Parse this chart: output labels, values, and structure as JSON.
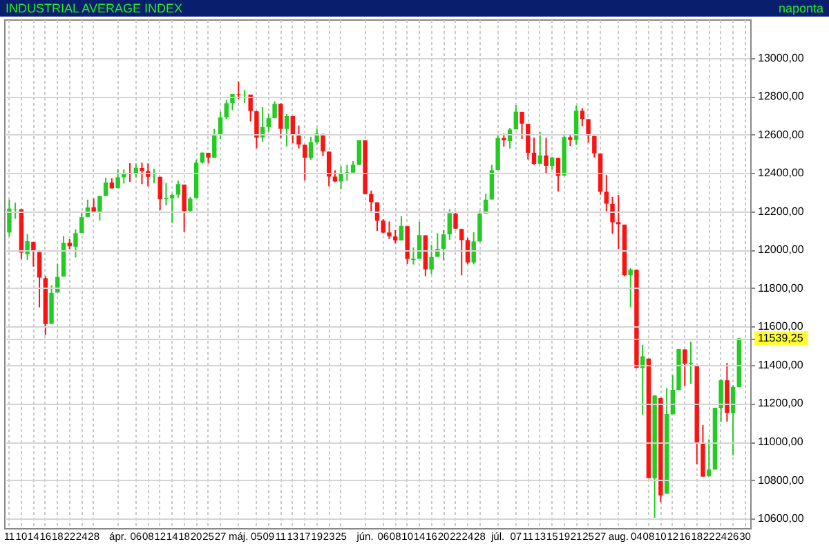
{
  "chart_data": {
    "type": "candlestick",
    "title": "INDUSTRIAL AVERAGE INDEX",
    "subtitle": "naponta",
    "categories": [
      "11",
      null,
      "10",
      null,
      "14",
      null,
      "16",
      null,
      "18",
      null,
      "22",
      null,
      "24",
      null,
      "28",
      null,
      null,
      null,
      "ápr.",
      null,
      null,
      "06",
      null,
      "08",
      null,
      "12",
      null,
      "14",
      null,
      "18",
      null,
      "20",
      null,
      "25",
      null,
      "27",
      null,
      null,
      "máj.",
      null,
      null,
      "05",
      null,
      "09",
      null,
      "11",
      null,
      "13",
      null,
      "17",
      null,
      "19",
      null,
      "23",
      null,
      "25",
      null,
      null,
      null,
      "jún.",
      null,
      null,
      "06",
      null,
      "08",
      null,
      "10",
      null,
      "14",
      null,
      "16",
      null,
      "20",
      null,
      "22",
      null,
      "24",
      null,
      "28",
      null,
      null,
      "júl.",
      null,
      null,
      "07",
      null,
      "11",
      null,
      "13",
      null,
      "15",
      null,
      "19",
      null,
      "21",
      null,
      "25",
      null,
      "27",
      null,
      null,
      "aug.",
      null,
      null,
      "04",
      null,
      "08",
      null,
      "10",
      null,
      "12",
      null,
      "16",
      null,
      "18",
      null,
      "22",
      null,
      "24",
      null,
      "26",
      null,
      "30"
    ],
    "ohlc": [
      [
        12090,
        12261,
        12069,
        12214
      ],
      [
        12211,
        12245,
        12161,
        12213
      ],
      [
        12211,
        12211,
        11951,
        11985
      ],
      [
        11977,
        12082,
        11947,
        12044
      ],
      [
        12041,
        12041,
        11912,
        11993
      ],
      [
        11988,
        11988,
        11700,
        11855
      ],
      [
        11852,
        11862,
        11556,
        11613
      ],
      [
        11614,
        11814,
        11614,
        11775
      ],
      [
        11777,
        11927,
        11777,
        11858
      ],
      [
        11860,
        12071,
        11860,
        12036
      ],
      [
        12036,
        12055,
        12003,
        12018
      ],
      [
        12016,
        12106,
        11960,
        12086
      ],
      [
        12087,
        12193,
        12087,
        12170
      ],
      [
        12171,
        12261,
        12171,
        12220
      ],
      [
        12221,
        12266,
        12193,
        12198
      ],
      [
        12198,
        12280,
        12152,
        12280
      ],
      [
        12280,
        12375,
        12280,
        12350
      ],
      [
        12350,
        12372,
        12319,
        12320
      ],
      [
        12321,
        12420,
        12321,
        12377
      ],
      [
        12377,
        12419,
        12345,
        12400
      ],
      [
        12400,
        12451,
        12353,
        12394
      ],
      [
        12395,
        12450,
        12376,
        12427
      ],
      [
        12426,
        12453,
        12342,
        12409
      ],
      [
        12409,
        12450,
        12330,
        12380
      ],
      [
        12381,
        12422,
        12346,
        12382
      ],
      [
        12380,
        12380,
        12206,
        12263
      ],
      [
        12263,
        12348,
        12231,
        12270
      ],
      [
        12268,
        12291,
        12139,
        12285
      ],
      [
        12287,
        12360,
        12270,
        12342
      ],
      [
        12339,
        12339,
        12093,
        12202
      ],
      [
        12202,
        12275,
        12200,
        12266
      ],
      [
        12269,
        12469,
        12269,
        12453
      ],
      [
        12454,
        12507,
        12449,
        12506
      ],
      [
        12505,
        12505,
        12449,
        12480
      ],
      [
        12479,
        12630,
        12479,
        12595
      ],
      [
        12595,
        12720,
        12577,
        12690
      ],
      [
        12690,
        12780,
        12681,
        12763
      ],
      [
        12764,
        12811,
        12727,
        12811
      ],
      [
        12810,
        12876,
        12785,
        12807
      ],
      [
        12806,
        12832,
        12766,
        12808
      ],
      [
        12808,
        12808,
        12669,
        12723
      ],
      [
        12722,
        12723,
        12529,
        12584
      ],
      [
        12585,
        12743,
        12563,
        12639
      ],
      [
        12638,
        12710,
        12614,
        12685
      ],
      [
        12685,
        12773,
        12685,
        12760
      ],
      [
        12760,
        12763,
        12582,
        12630
      ],
      [
        12629,
        12707,
        12538,
        12696
      ],
      [
        12696,
        12697,
        12556,
        12596
      ],
      [
        12594,
        12647,
        12527,
        12548
      ],
      [
        12547,
        12547,
        12361,
        12479
      ],
      [
        12478,
        12588,
        12468,
        12560
      ],
      [
        12560,
        12632,
        12547,
        12605
      ],
      [
        12603,
        12604,
        12488,
        12512
      ],
      [
        12511,
        12511,
        12331,
        12381
      ],
      [
        12381,
        12414,
        12352,
        12356
      ],
      [
        12356,
        12435,
        12315,
        12395
      ],
      [
        12394,
        12442,
        12360,
        12403
      ],
      [
        12402,
        12462,
        12402,
        12442
      ],
      [
        12442,
        12570,
        12442,
        12570
      ],
      [
        12570,
        12570,
        12288,
        12290
      ],
      [
        12290,
        12308,
        12200,
        12248
      ],
      [
        12247,
        12247,
        12097,
        12151
      ],
      [
        12152,
        12159,
        12085,
        12089
      ],
      [
        12090,
        12147,
        12056,
        12070
      ],
      [
        12069,
        12103,
        12033,
        12049
      ],
      [
        12049,
        12175,
        12049,
        12124
      ],
      [
        12123,
        12123,
        11926,
        11952
      ],
      [
        11946,
        12012,
        11923,
        11953
      ],
      [
        11953,
        12145,
        11953,
        12076
      ],
      [
        12075,
        12075,
        11862,
        11898
      ],
      [
        11897,
        12026,
        11873,
        11962
      ],
      [
        11963,
        12086,
        11963,
        12004
      ],
      [
        12005,
        12103,
        11946,
        12081
      ],
      [
        12080,
        12211,
        12052,
        12190
      ],
      [
        12188,
        12200,
        12108,
        12110
      ],
      [
        12108,
        12110,
        11867,
        12050
      ],
      [
        12050,
        12062,
        11925,
        11934
      ],
      [
        11934,
        12091,
        11924,
        12043
      ],
      [
        12043,
        12204,
        12043,
        12188
      ],
      [
        12189,
        12292,
        12189,
        12261
      ],
      [
        12262,
        12442,
        12262,
        12414
      ],
      [
        12415,
        12600,
        12415,
        12582
      ],
      [
        12582,
        12605,
        12537,
        12570
      ],
      [
        12566,
        12635,
        12527,
        12626
      ],
      [
        12627,
        12753,
        12627,
        12719
      ],
      [
        12718,
        12718,
        12577,
        12657
      ],
      [
        12656,
        12656,
        12470,
        12505
      ],
      [
        12505,
        12584,
        12442,
        12447
      ],
      [
        12448,
        12613,
        12448,
        12491
      ],
      [
        12491,
        12583,
        12399,
        12437
      ],
      [
        12437,
        12484,
        12418,
        12480
      ],
      [
        12478,
        12479,
        12303,
        12385
      ],
      [
        12386,
        12601,
        12386,
        12587
      ],
      [
        12586,
        12598,
        12541,
        12572
      ],
      [
        12572,
        12751,
        12546,
        12724
      ],
      [
        12724,
        12738,
        12644,
        12681
      ],
      [
        12680,
        12680,
        12558,
        12593
      ],
      [
        12592,
        12593,
        12481,
        12502
      ],
      [
        12501,
        12501,
        12287,
        12302
      ],
      [
        12302,
        12390,
        12201,
        12240
      ],
      [
        12239,
        12275,
        12084,
        12143
      ],
      [
        12144,
        12285,
        12005,
        12133
      ],
      [
        12131,
        12131,
        11862,
        11867
      ],
      [
        11867,
        11904,
        11700,
        11897
      ],
      [
        11896,
        11896,
        11383,
        11384
      ],
      [
        11384,
        11505,
        11139,
        11445
      ],
      [
        11433,
        11433,
        10809,
        10810
      ],
      [
        10810,
        11244,
        10604,
        11240
      ],
      [
        11228,
        11228,
        10686,
        10720
      ],
      [
        10729,
        11280,
        10729,
        11144
      ],
      [
        11143,
        11347,
        11143,
        11270
      ],
      [
        11269,
        11483,
        11269,
        11483
      ],
      [
        11481,
        11481,
        11292,
        11406
      ],
      [
        11405,
        11521,
        11301,
        11411
      ],
      [
        11394,
        11394,
        10884,
        10991
      ],
      [
        10989,
        11087,
        10818,
        10818
      ],
      [
        10821,
        11012,
        10817,
        10855
      ],
      [
        10855,
        11177,
        10855,
        11177
      ],
      [
        11176,
        11326,
        11103,
        11320
      ],
      [
        11320,
        11410,
        11105,
        11150
      ],
      [
        11149,
        11294,
        10929,
        11285
      ],
      [
        11284,
        11540,
        11284,
        11539.25
      ],
      null
    ],
    "colors": [
      "#22cc22",
      "#22cc22",
      "#ff1111",
      "#22cc22",
      "#ff1111",
      "#ff1111",
      "#ff1111",
      "#22cc22",
      "#22cc22",
      "#22cc22",
      "#ff1111",
      "#22cc22",
      "#22cc22",
      "#22cc22",
      "#ff1111",
      "#22cc22",
      "#22cc22",
      "#ff1111",
      "#22cc22",
      "#22cc22",
      "#ff1111",
      "#22cc22",
      "#ff1111",
      "#ff1111",
      "#22cc22",
      "#ff1111",
      "#22cc22",
      "#22cc22",
      "#22cc22",
      "#ff1111",
      "#22cc22",
      "#22cc22",
      "#22cc22",
      "#ff1111",
      "#22cc22",
      "#22cc22",
      "#22cc22",
      "#22cc22",
      "#ff1111",
      "#22cc22",
      "#ff1111",
      "#ff1111",
      "#22cc22",
      "#22cc22",
      "#22cc22",
      "#ff1111",
      "#22cc22",
      "#ff1111",
      "#ff1111",
      "#ff1111",
      "#22cc22",
      "#22cc22",
      "#ff1111",
      "#ff1111",
      "#ff1111",
      "#22cc22",
      "#22cc22",
      "#22cc22",
      "#22cc22",
      "#ff1111",
      "#ff1111",
      "#ff1111",
      "#ff1111",
      "#ff1111",
      "#ff1111",
      "#22cc22",
      "#ff1111",
      "#22cc22",
      "#22cc22",
      "#ff1111",
      "#22cc22",
      "#22cc22",
      "#22cc22",
      "#22cc22",
      "#ff1111",
      "#ff1111",
      "#ff1111",
      "#22cc22",
      "#22cc22",
      "#22cc22",
      "#22cc22",
      "#22cc22",
      "#ff1111",
      "#22cc22",
      "#22cc22",
      "#ff1111",
      "#ff1111",
      "#ff1111",
      "#22cc22",
      "#ff1111",
      "#22cc22",
      "#ff1111",
      "#22cc22",
      "#ff1111",
      "#22cc22",
      "#ff1111",
      "#ff1111",
      "#ff1111",
      "#ff1111",
      "#ff1111",
      "#ff1111",
      "#ff1111",
      "#ff1111",
      "#22cc22",
      "#ff1111",
      "#22cc22",
      "#ff1111",
      "#22cc22",
      "#ff1111",
      "#22cc22",
      "#22cc22",
      "#22cc22",
      "#ff1111",
      "#22cc22",
      "#ff1111",
      "#ff1111",
      "#22cc22",
      "#22cc22",
      "#22cc22",
      "#ff1111",
      "#22cc22",
      "#22cc22",
      null
    ],
    "ylim": [
      10550,
      13200
    ],
    "yticks": [
      {
        "value": 10600,
        "label": "10600,00"
      },
      {
        "value": 10800,
        "label": "10800,00"
      },
      {
        "value": 11000,
        "label": "11000,00"
      },
      {
        "value": 11200,
        "label": "11200,00"
      },
      {
        "value": 11400,
        "label": "11400,00"
      },
      {
        "value": 11539.25,
        "label": "11539,25"
      },
      {
        "value": 11600,
        "label": "11600,00"
      },
      {
        "value": 11800,
        "label": "11800,00"
      },
      {
        "value": 12000,
        "label": "12000,00"
      },
      {
        "value": 12200,
        "label": "12200,00"
      },
      {
        "value": 12400,
        "label": "12400,00"
      },
      {
        "value": 12600,
        "label": "12600,00"
      },
      {
        "value": 12800,
        "label": "12800,00"
      },
      {
        "value": 13000,
        "label": "13000,00"
      }
    ],
    "grid": true
  }
}
